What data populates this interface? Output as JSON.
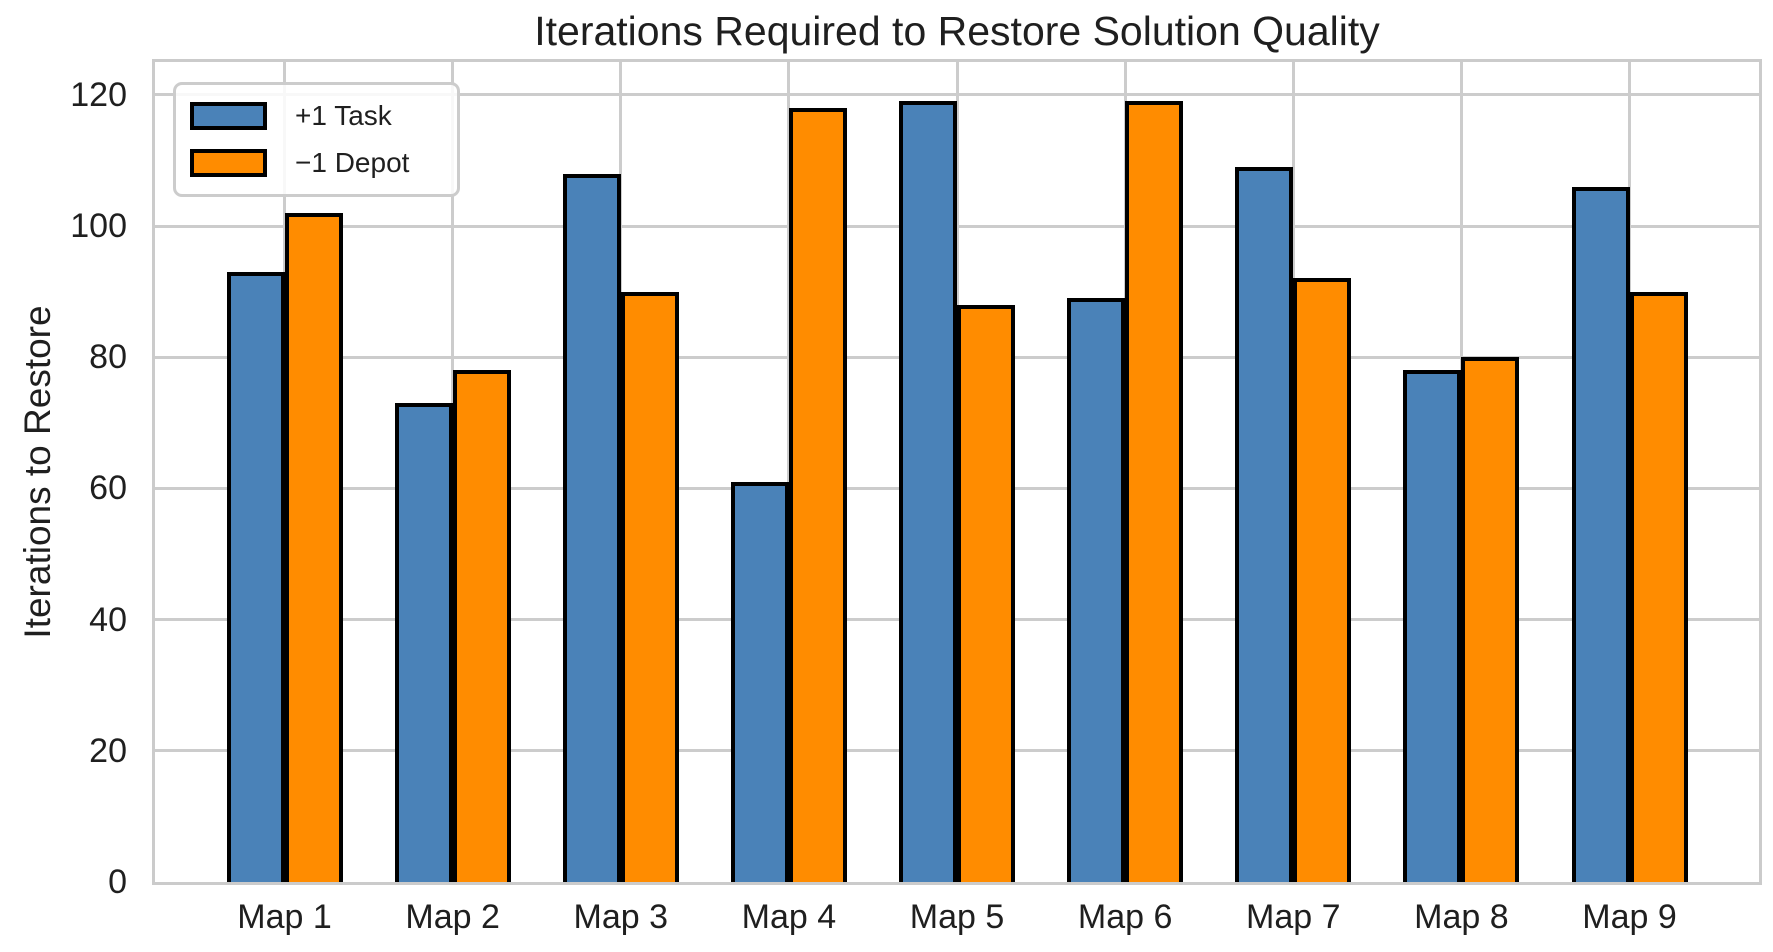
{
  "chart_data": {
    "type": "bar",
    "title": "Iterations Required to Restore Solution Quality",
    "ylabel": "Iterations to Restore",
    "xlabel": "",
    "categories": [
      "Map 1",
      "Map 2",
      "Map 3",
      "Map 4",
      "Map 5",
      "Map 6",
      "Map 7",
      "Map 8",
      "Map 9"
    ],
    "series": [
      {
        "name": "+1 Task",
        "color": "#4A82B8",
        "values": [
          93,
          73,
          108,
          61,
          119,
          89,
          109,
          78,
          106
        ]
      },
      {
        "name": "−1 Depot",
        "color": "#FF8C00",
        "values": [
          102,
          78,
          90,
          118,
          88,
          119,
          92,
          80,
          90
        ]
      }
    ],
    "ylim": [
      0,
      125
    ],
    "yticks": [
      0,
      20,
      40,
      60,
      80,
      100,
      120
    ],
    "grid": true,
    "legend_position": "upper-left",
    "bar_edge_color": "#000000",
    "grid_color": "#cccccc"
  }
}
